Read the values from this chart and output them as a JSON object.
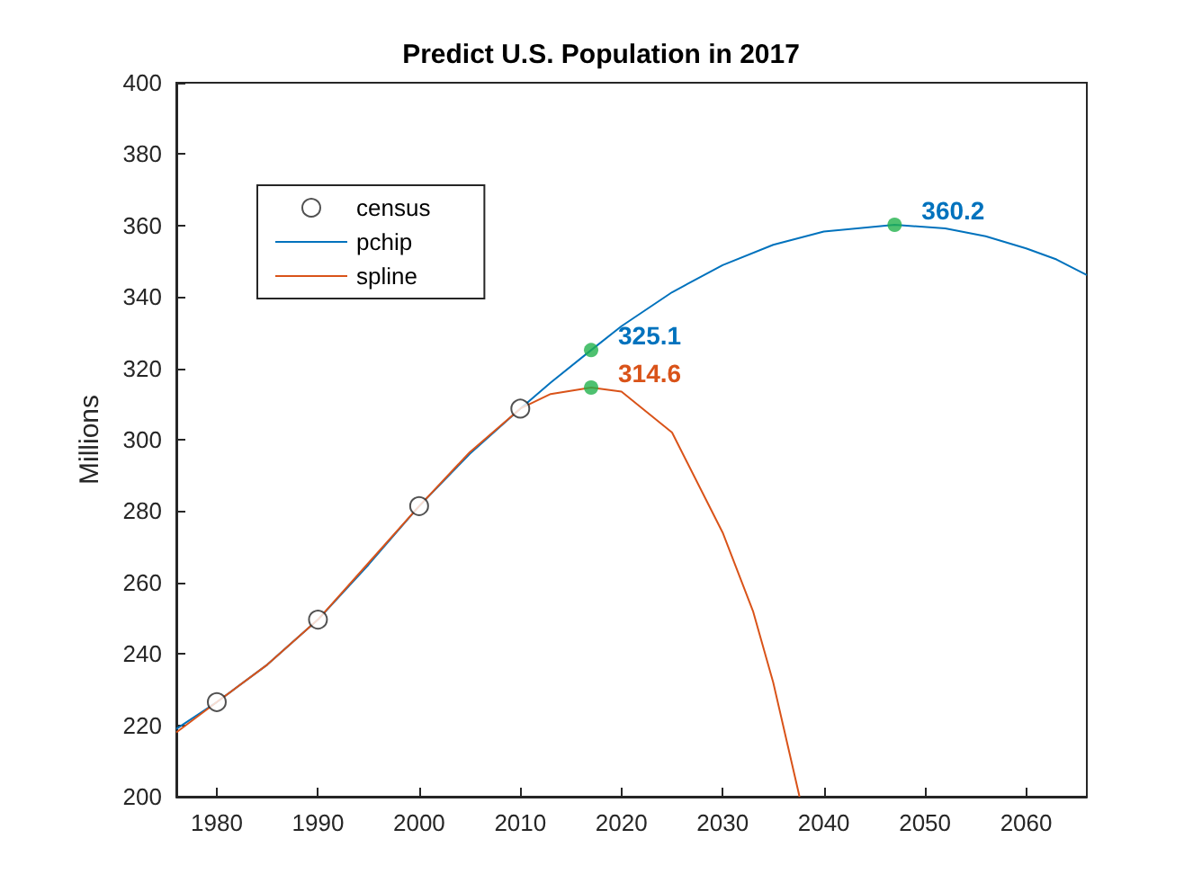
{
  "chart_data": {
    "type": "line",
    "title": "Predict U.S. Population in 2017",
    "ylabel": "Millions",
    "xlim": [
      1976,
      2066
    ],
    "xticks": [
      1980,
      1990,
      2000,
      2010,
      2020,
      2030,
      2040,
      2050,
      2060
    ],
    "ylim": [
      200,
      400
    ],
    "yticks": [
      200,
      220,
      240,
      260,
      280,
      300,
      320,
      340,
      360,
      380,
      400
    ],
    "legend": "top left",
    "series": [
      {
        "name": "census",
        "type": "scatter",
        "marker": "circle",
        "color": "#262626",
        "x": [
          1980,
          1990,
          2000,
          2010
        ],
        "values": [
          226.5,
          249.6,
          281.4,
          308.7
        ]
      },
      {
        "name": "pchip",
        "type": "line",
        "marker": "none",
        "color": "#0072bd",
        "x": [
          1976,
          1980,
          1985,
          1990,
          1995,
          2000,
          2005,
          2010,
          2013,
          2017,
          2020,
          2025,
          2030,
          2035,
          2040,
          2047,
          2052,
          2056,
          2060,
          2063,
          2066
        ],
        "values": [
          219,
          226.5,
          237,
          249.6,
          265,
          281.4,
          296,
          308.7,
          316,
          325.1,
          331.8,
          341.3,
          348.9,
          354.6,
          358.3,
          360.2,
          359.2,
          357,
          353.6,
          350.5,
          346.1
        ],
        "value_labels": [
          null,
          null,
          null,
          null,
          null,
          null,
          null,
          null,
          null,
          "325.1",
          null,
          null,
          null,
          null,
          null,
          "360.2",
          null,
          null,
          null,
          null,
          null
        ]
      },
      {
        "name": "spline",
        "type": "line",
        "marker": "none",
        "color": "#d95319",
        "x": [
          1976,
          1980,
          1985,
          1990,
          1995,
          2000,
          2005,
          2010,
          2013,
          2017,
          2020,
          2025,
          2030,
          2033,
          2035,
          2037.6
        ],
        "values": [
          218,
          226.5,
          237,
          249.6,
          265.5,
          281.4,
          296.5,
          308.7,
          312.8,
          314.6,
          313.5,
          302,
          274,
          252,
          232,
          200
        ],
        "value_labels": [
          null,
          null,
          null,
          null,
          null,
          null,
          null,
          null,
          null,
          "314.6",
          null,
          null,
          null,
          null,
          null,
          null
        ]
      },
      {
        "type": "scatter",
        "marker": "circle",
        "color": "#22b14c",
        "x": [
          2017,
          2017,
          2047
        ],
        "values": [
          325.1,
          314.6,
          360.2
        ]
      }
    ]
  }
}
